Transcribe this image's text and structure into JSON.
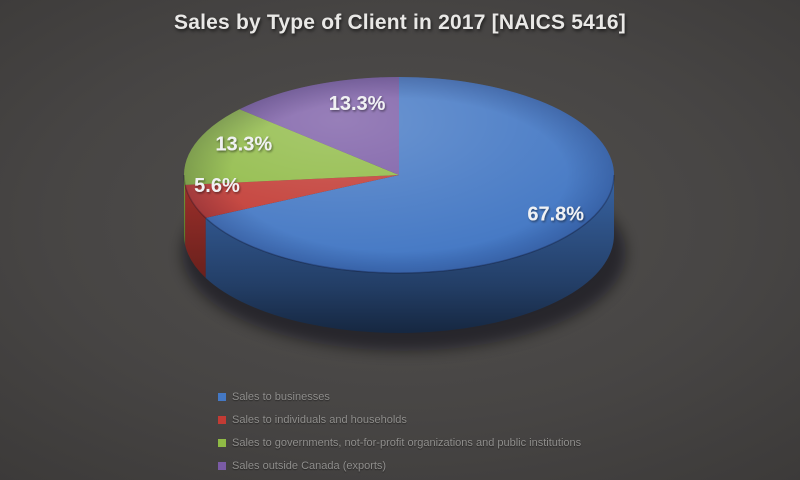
{
  "chart_data": {
    "type": "pie",
    "style": "3d",
    "title": "Sales by Type of Client in 2017 [NAICS 5416]",
    "legend_position": "bottom-left",
    "percent_labels_shown": true,
    "slices": [
      {
        "label": "Sales to businesses",
        "value": 67.8,
        "display": "67.8%",
        "color": "#4478C4"
      },
      {
        "label": "Sales to individuals and households",
        "value": 5.6,
        "display": "5.6%",
        "color": "#C23B34"
      },
      {
        "label": "Sales to governments, not-for-profit organizations and public institutions",
        "value": 13.3,
        "display": "13.3%",
        "color": "#8FBA45"
      },
      {
        "label": "Sales outside Canada (exports)",
        "value": 13.3,
        "display": "13.3%",
        "color": "#7A5BA5"
      }
    ],
    "colors": {
      "background_center": "#514F4D",
      "background_edge": "#2D2C2B",
      "title_text": "#E9E8E6",
      "legend_text": "#8F8E8C",
      "slice_label_text": "#F0F1F3"
    }
  }
}
